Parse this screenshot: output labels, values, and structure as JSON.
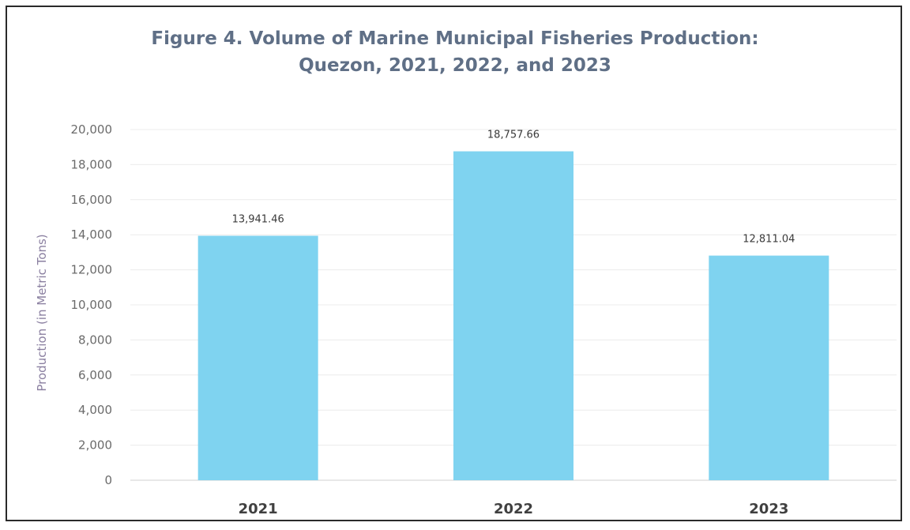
{
  "chart_data": {
    "type": "bar",
    "title_line1": "Figure 4. Volume of Marine Municipal Fisheries Production:",
    "title_line2": "Quezon, 2021, 2022, and 2023",
    "categories": [
      "2021",
      "2022",
      "2023"
    ],
    "values": [
      13941.46,
      18757.66,
      12811.04
    ],
    "value_labels": [
      "13,941.46",
      "18,757.66",
      "12,811.04"
    ],
    "ylabel": "Production (in Metric Tons)",
    "xlabel": "",
    "ylim": [
      0,
      20000
    ],
    "yticks": [
      0,
      2000,
      4000,
      6000,
      8000,
      10000,
      12000,
      14000,
      16000,
      18000,
      20000
    ],
    "ytick_labels": [
      "0",
      "2,000",
      "4,000",
      "6,000",
      "8,000",
      "10,000",
      "12,000",
      "14,000",
      "16,000",
      "18,000",
      "20,000"
    ],
    "grid": true,
    "legend": "none",
    "bar_color": "#7fd3f0"
  }
}
